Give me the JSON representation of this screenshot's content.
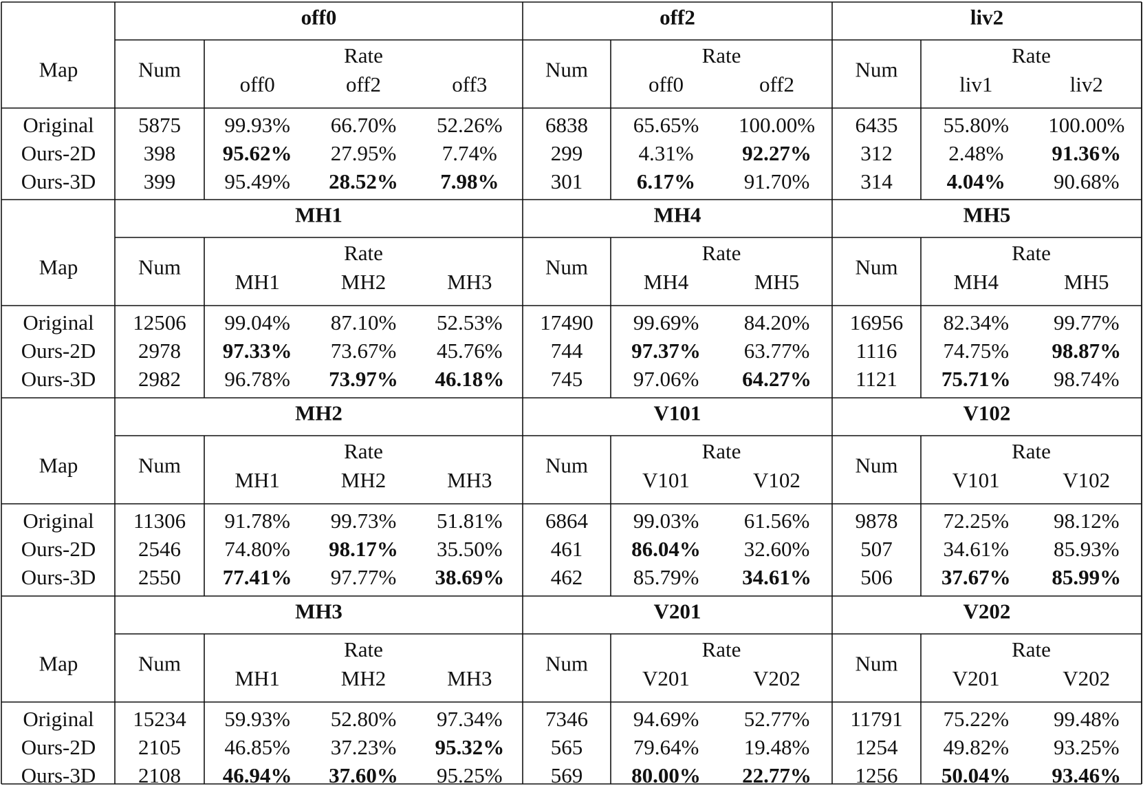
{
  "labels": {
    "map": "Map",
    "num": "Num",
    "rate": "Rate"
  },
  "blocks": [
    {
      "groups": [
        {
          "title": "off0",
          "sub": [
            "off0",
            "off2",
            "off3"
          ],
          "rows": [
            {
              "num": "5875",
              "rates": [
                {
                  "v": "99.93%",
                  "b": false
                },
                {
                  "v": "66.70%",
                  "b": false
                },
                {
                  "v": "52.26%",
                  "b": false
                }
              ]
            },
            {
              "num": "398",
              "rates": [
                {
                  "v": "95.62%",
                  "b": true
                },
                {
                  "v": "27.95%",
                  "b": false
                },
                {
                  "v": "7.74%",
                  "b": false
                }
              ]
            },
            {
              "num": "399",
              "rates": [
                {
                  "v": "95.49%",
                  "b": false
                },
                {
                  "v": "28.52%",
                  "b": true
                },
                {
                  "v": "7.98%",
                  "b": true
                }
              ]
            }
          ]
        },
        {
          "title": "off2",
          "sub": [
            "off0",
            "off2"
          ],
          "rows": [
            {
              "num": "6838",
              "rates": [
                {
                  "v": "65.65%",
                  "b": false
                },
                {
                  "v": "100.00%",
                  "b": false
                }
              ]
            },
            {
              "num": "299",
              "rates": [
                {
                  "v": "4.31%",
                  "b": false
                },
                {
                  "v": "92.27%",
                  "b": true
                }
              ]
            },
            {
              "num": "301",
              "rates": [
                {
                  "v": "6.17%",
                  "b": true
                },
                {
                  "v": "91.70%",
                  "b": false
                }
              ]
            }
          ]
        },
        {
          "title": "liv2",
          "sub": [
            "liv1",
            "liv2"
          ],
          "rows": [
            {
              "num": "6435",
              "rates": [
                {
                  "v": "55.80%",
                  "b": false
                },
                {
                  "v": "100.00%",
                  "b": false
                }
              ]
            },
            {
              "num": "312",
              "rates": [
                {
                  "v": "2.48%",
                  "b": false
                },
                {
                  "v": "91.36%",
                  "b": true
                }
              ]
            },
            {
              "num": "314",
              "rates": [
                {
                  "v": "4.04%",
                  "b": true
                },
                {
                  "v": "90.68%",
                  "b": false
                }
              ]
            }
          ]
        }
      ]
    },
    {
      "groups": [
        {
          "title": "MH1",
          "sub": [
            "MH1",
            "MH2",
            "MH3"
          ],
          "rows": [
            {
              "num": "12506",
              "rates": [
                {
                  "v": "99.04%",
                  "b": false
                },
                {
                  "v": "87.10%",
                  "b": false
                },
                {
                  "v": "52.53%",
                  "b": false
                }
              ]
            },
            {
              "num": "2978",
              "rates": [
                {
                  "v": "97.33%",
                  "b": true
                },
                {
                  "v": "73.67%",
                  "b": false
                },
                {
                  "v": "45.76%",
                  "b": false
                }
              ]
            },
            {
              "num": "2982",
              "rates": [
                {
                  "v": "96.78%",
                  "b": false
                },
                {
                  "v": "73.97%",
                  "b": true
                },
                {
                  "v": "46.18%",
                  "b": true
                }
              ]
            }
          ]
        },
        {
          "title": "MH4",
          "sub": [
            "MH4",
            "MH5"
          ],
          "rows": [
            {
              "num": "17490",
              "rates": [
                {
                  "v": "99.69%",
                  "b": false
                },
                {
                  "v": "84.20%",
                  "b": false
                }
              ]
            },
            {
              "num": "744",
              "rates": [
                {
                  "v": "97.37%",
                  "b": true
                },
                {
                  "v": "63.77%",
                  "b": false
                }
              ]
            },
            {
              "num": "745",
              "rates": [
                {
                  "v": "97.06%",
                  "b": false
                },
                {
                  "v": "64.27%",
                  "b": true
                }
              ]
            }
          ]
        },
        {
          "title": "MH5",
          "sub": [
            "MH4",
            "MH5"
          ],
          "rows": [
            {
              "num": "16956",
              "rates": [
                {
                  "v": "82.34%",
                  "b": false
                },
                {
                  "v": "99.77%",
                  "b": false
                }
              ]
            },
            {
              "num": "1116",
              "rates": [
                {
                  "v": "74.75%",
                  "b": false
                },
                {
                  "v": "98.87%",
                  "b": true
                }
              ]
            },
            {
              "num": "1121",
              "rates": [
                {
                  "v": "75.71%",
                  "b": true
                },
                {
                  "v": "98.74%",
                  "b": false
                }
              ]
            }
          ]
        }
      ]
    },
    {
      "groups": [
        {
          "title": "MH2",
          "sub": [
            "MH1",
            "MH2",
            "MH3"
          ],
          "rows": [
            {
              "num": "11306",
              "rates": [
                {
                  "v": "91.78%",
                  "b": false
                },
                {
                  "v": "99.73%",
                  "b": false
                },
                {
                  "v": "51.81%",
                  "b": false
                }
              ]
            },
            {
              "num": "2546",
              "rates": [
                {
                  "v": "74.80%",
                  "b": false
                },
                {
                  "v": "98.17%",
                  "b": true
                },
                {
                  "v": "35.50%",
                  "b": false
                }
              ]
            },
            {
              "num": "2550",
              "rates": [
                {
                  "v": "77.41%",
                  "b": true
                },
                {
                  "v": "97.77%",
                  "b": false
                },
                {
                  "v": "38.69%",
                  "b": true
                }
              ]
            }
          ]
        },
        {
          "title": "V101",
          "sub": [
            "V101",
            "V102"
          ],
          "rows": [
            {
              "num": "6864",
              "rates": [
                {
                  "v": "99.03%",
                  "b": false
                },
                {
                  "v": "61.56%",
                  "b": false
                }
              ]
            },
            {
              "num": "461",
              "rates": [
                {
                  "v": "86.04%",
                  "b": true
                },
                {
                  "v": "32.60%",
                  "b": false
                }
              ]
            },
            {
              "num": "462",
              "rates": [
                {
                  "v": "85.79%",
                  "b": false
                },
                {
                  "v": "34.61%",
                  "b": true
                }
              ]
            }
          ]
        },
        {
          "title": "V102",
          "sub": [
            "V101",
            "V102"
          ],
          "rows": [
            {
              "num": "9878",
              "rates": [
                {
                  "v": "72.25%",
                  "b": false
                },
                {
                  "v": "98.12%",
                  "b": false
                }
              ]
            },
            {
              "num": "507",
              "rates": [
                {
                  "v": "34.61%",
                  "b": false
                },
                {
                  "v": "85.93%",
                  "b": false
                }
              ]
            },
            {
              "num": "506",
              "rates": [
                {
                  "v": "37.67%",
                  "b": true
                },
                {
                  "v": "85.99%",
                  "b": true
                }
              ]
            }
          ]
        }
      ]
    },
    {
      "groups": [
        {
          "title": "MH3",
          "sub": [
            "MH1",
            "MH2",
            "MH3"
          ],
          "rows": [
            {
              "num": "15234",
              "rates": [
                {
                  "v": "59.93%",
                  "b": false
                },
                {
                  "v": "52.80%",
                  "b": false
                },
                {
                  "v": "97.34%",
                  "b": false
                }
              ]
            },
            {
              "num": "2105",
              "rates": [
                {
                  "v": "46.85%",
                  "b": false
                },
                {
                  "v": "37.23%",
                  "b": false
                },
                {
                  "v": "95.32%",
                  "b": true
                }
              ]
            },
            {
              "num": "2108",
              "rates": [
                {
                  "v": "46.94%",
                  "b": true
                },
                {
                  "v": "37.60%",
                  "b": true
                },
                {
                  "v": "95.25%",
                  "b": false
                }
              ]
            }
          ]
        },
        {
          "title": "V201",
          "sub": [
            "V201",
            "V202"
          ],
          "rows": [
            {
              "num": "7346",
              "rates": [
                {
                  "v": "94.69%",
                  "b": false
                },
                {
                  "v": "52.77%",
                  "b": false
                }
              ]
            },
            {
              "num": "565",
              "rates": [
                {
                  "v": "79.64%",
                  "b": false
                },
                {
                  "v": "19.48%",
                  "b": false
                }
              ]
            },
            {
              "num": "569",
              "rates": [
                {
                  "v": "80.00%",
                  "b": true
                },
                {
                  "v": "22.77%",
                  "b": true
                }
              ]
            }
          ]
        },
        {
          "title": "V202",
          "sub": [
            "V201",
            "V202"
          ],
          "rows": [
            {
              "num": "11791",
              "rates": [
                {
                  "v": "75.22%",
                  "b": false
                },
                {
                  "v": "99.48%",
                  "b": false
                }
              ]
            },
            {
              "num": "1254",
              "rates": [
                {
                  "v": "49.82%",
                  "b": false
                },
                {
                  "v": "93.25%",
                  "b": false
                }
              ]
            },
            {
              "num": "1256",
              "rates": [
                {
                  "v": "50.04%",
                  "b": true
                },
                {
                  "v": "93.46%",
                  "b": true
                }
              ]
            }
          ]
        }
      ]
    }
  ],
  "row_labels": [
    "Original",
    "Ours-2D",
    "Ours-3D"
  ]
}
